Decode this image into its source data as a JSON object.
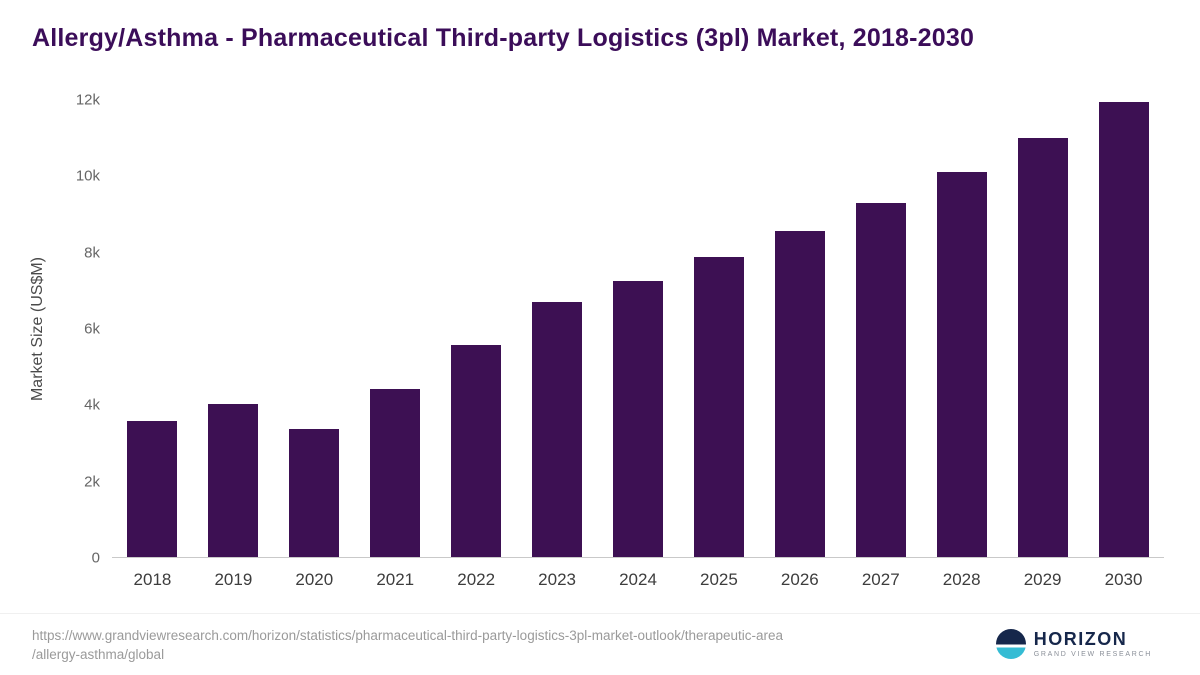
{
  "title": "Allergy/Asthma - Pharmaceutical Third-party Logistics (3pl) Market, 2018-2030",
  "chart_data": {
    "type": "bar",
    "title": "Allergy/Asthma - Pharmaceutical Third-party Logistics (3pl) Market, 2018-2030",
    "categories": [
      "2018",
      "2019",
      "2020",
      "2021",
      "2022",
      "2023",
      "2024",
      "2025",
      "2026",
      "2027",
      "2028",
      "2029",
      "2030"
    ],
    "values": [
      3580,
      4020,
      3350,
      4420,
      5560,
      6700,
      7250,
      7890,
      8550,
      9300,
      10100,
      11000,
      11950
    ],
    "xlabel": "",
    "ylabel": "Market Size (US$M)",
    "ylim": [
      0,
      12000
    ],
    "yticks": [
      0,
      2000,
      4000,
      6000,
      8000,
      10000,
      12000
    ],
    "ytick_labels": [
      "0",
      "2k",
      "4k",
      "6k",
      "8k",
      "10k",
      "12k"
    ],
    "bar_color": "#3d1053",
    "grid": false,
    "legend_position": "none"
  },
  "colors": {
    "title": "#3b0d59",
    "bar": "#3d1053",
    "axis_text": "#666666",
    "baseline": "#c9c9c9"
  },
  "footer": {
    "source_line1": "https://www.grandviewresearch.com/horizon/statistics/pharmaceutical-third-party-logistics-3pl-market-outlook/therapeutic-area",
    "source_line2": "/allergy-asthma/global",
    "logo_name": "HORIZON",
    "logo_subtitle": "GRAND VIEW RESEARCH"
  }
}
